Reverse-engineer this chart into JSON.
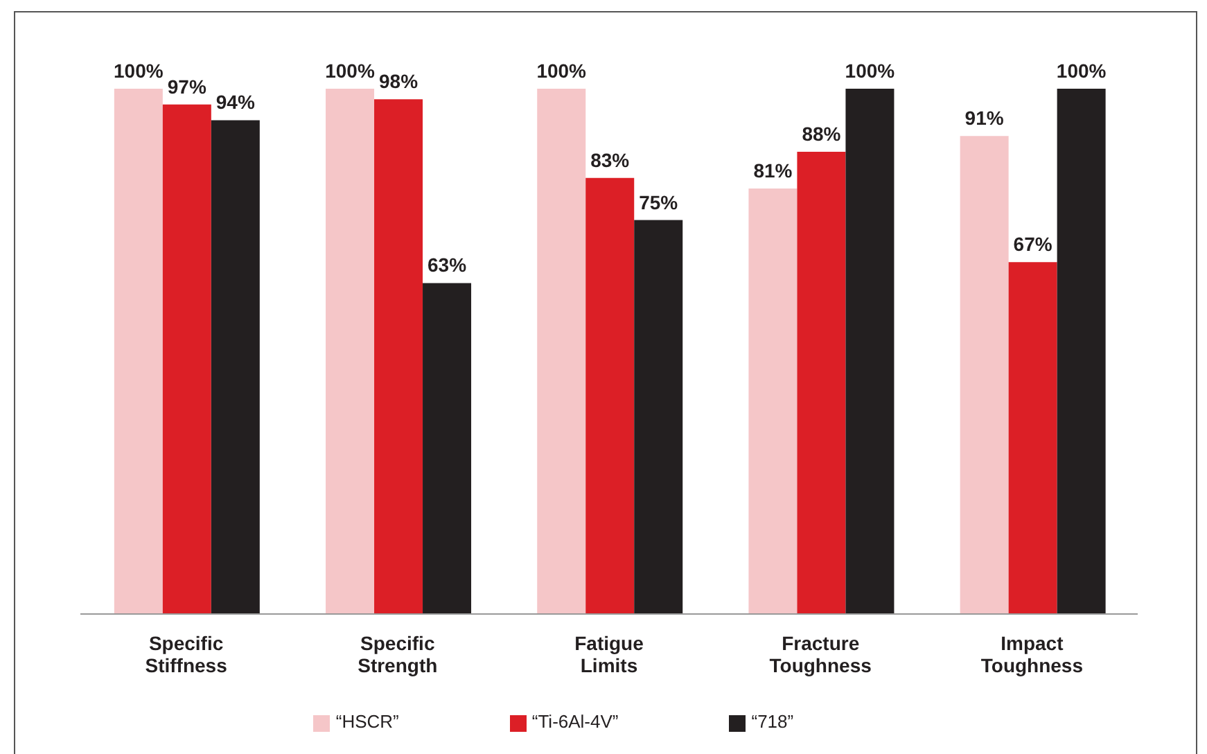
{
  "chart_data": {
    "type": "bar",
    "categories": [
      "Specific Stiffness",
      "Specific Strength",
      "Fatigue Limits",
      "Fracture Toughness",
      "Impact Toughness"
    ],
    "series": [
      {
        "name": "“HSCR”",
        "color": "#f5c6c8",
        "values": [
          100,
          100,
          100,
          81,
          91
        ],
        "value_labels": [
          "100%",
          "100%",
          "100%",
          "81%",
          "91%"
        ]
      },
      {
        "name": "“Ti-6Al-4V”",
        "color": "#dc1f26",
        "values": [
          97,
          98,
          83,
          88,
          67
        ],
        "value_labels": [
          "97%",
          "98%",
          "83%",
          "88%",
          "67%"
        ]
      },
      {
        "name": "“718”",
        "color": "#231f20",
        "values": [
          94,
          63,
          75,
          100,
          100
        ],
        "value_labels": [
          "94%",
          "63%",
          "75%",
          "100%",
          "100%"
        ]
      }
    ],
    "relative": false,
    "legend": "bottom",
    "grid": false
  }
}
